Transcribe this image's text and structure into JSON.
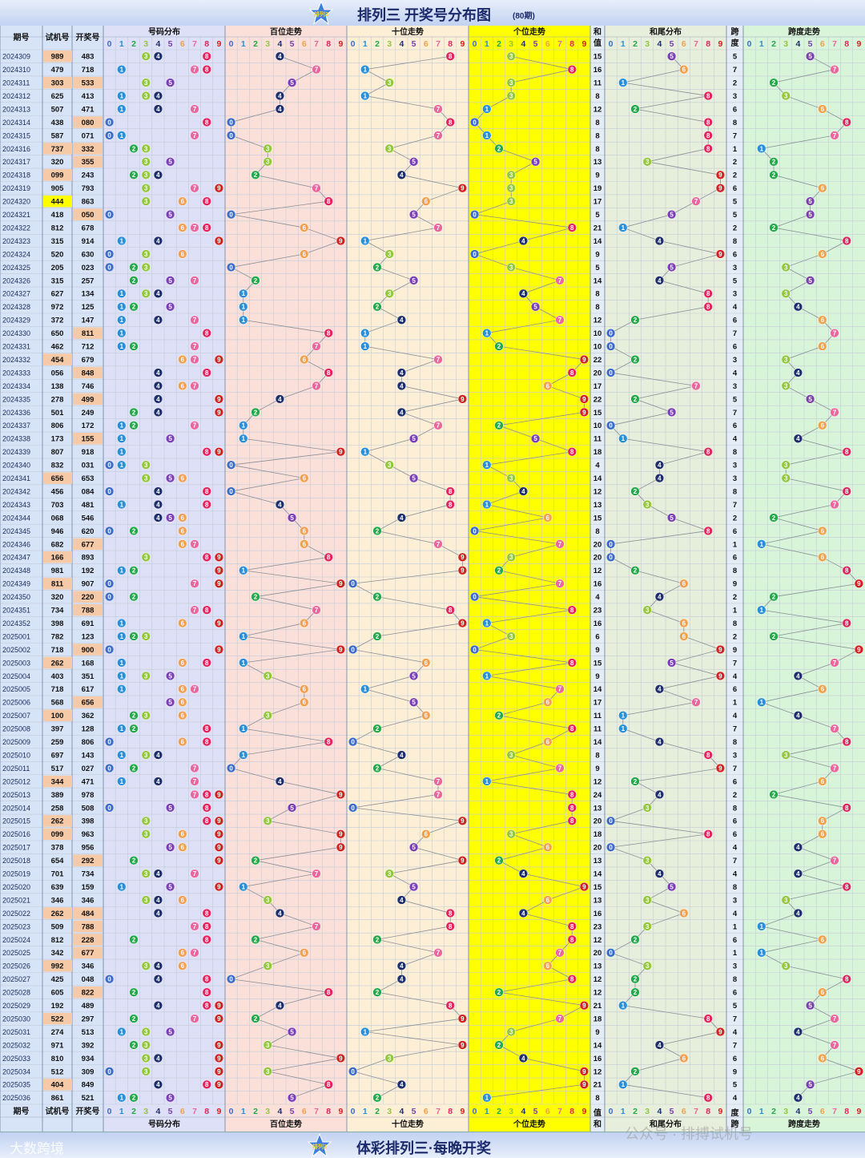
{
  "title": "排列三 开奖号分布图",
  "period_count": "(80期)",
  "logo_text": "排列3",
  "footer_title": "体彩排列三·每晚开奖",
  "watermark_left": "大数跨境",
  "watermark_right": "公众号 · 排搏试机号",
  "colors": {
    "d0": "#3c6cc8",
    "d1": "#2a8fd9",
    "d2": "#23a84a",
    "d3": "#92c73e",
    "d4": "#1e2f6e",
    "d5": "#7b3fb2",
    "d6": "#f2a04a",
    "d7": "#e9679e",
    "d8": "#e1245e",
    "d9": "#d32020"
  },
  "chart_data": {
    "type": "table",
    "columns": [
      "期号",
      "试机号",
      "开奖号",
      "号码分布",
      "百位走势",
      "十位走势",
      "个位走势",
      "和值",
      "和尾分布",
      "跨度",
      "跨度走势"
    ],
    "column_labels": {
      "issue": "期号",
      "trial": "试机号",
      "draw": "开奖号",
      "dist": "号码分布",
      "hundreds": "百位走势",
      "tens": "十位走势",
      "units": "个位走势",
      "sum": "和值",
      "sum_tail": "和尾分布",
      "span": "跨度",
      "span_trend": "跨度走势"
    },
    "digit_labels": [
      "0",
      "1",
      "2",
      "3",
      "4",
      "5",
      "6",
      "7",
      "8",
      "9"
    ],
    "rows": [
      {
        "issue": "2024309",
        "trial": "989",
        "draw": "483",
        "sum": "15",
        "span": "5"
      },
      {
        "issue": "2024310",
        "trial": "479",
        "draw": "718",
        "sum": "16",
        "span": "7"
      },
      {
        "issue": "2024311",
        "trial": "303",
        "draw": "533",
        "sum": "11",
        "span": "2"
      },
      {
        "issue": "2024312",
        "trial": "625",
        "draw": "413",
        "sum": "8",
        "span": "3"
      },
      {
        "issue": "2024313",
        "trial": "507",
        "draw": "471",
        "sum": "12",
        "span": "6"
      },
      {
        "issue": "2024314",
        "trial": "438",
        "draw": "080",
        "sum": "8",
        "span": "8"
      },
      {
        "issue": "2024315",
        "trial": "587",
        "draw": "071",
        "sum": "8",
        "span": "7"
      },
      {
        "issue": "2024316",
        "trial": "737",
        "draw": "332",
        "sum": "8",
        "span": "1"
      },
      {
        "issue": "2024317",
        "trial": "320",
        "draw": "355",
        "sum": "13",
        "span": "2"
      },
      {
        "issue": "2024318",
        "trial": "099",
        "draw": "243",
        "sum": "9",
        "span": "2"
      },
      {
        "issue": "2024319",
        "trial": "905",
        "draw": "793",
        "sum": "19",
        "span": "6"
      },
      {
        "issue": "2024320",
        "trial": "444",
        "draw": "863",
        "sum": "17",
        "span": "5"
      },
      {
        "issue": "2024321",
        "trial": "418",
        "draw": "050",
        "sum": "5",
        "span": "5"
      },
      {
        "issue": "2024322",
        "trial": "812",
        "draw": "678",
        "sum": "21",
        "span": "2"
      },
      {
        "issue": "2024323",
        "trial": "315",
        "draw": "914",
        "sum": "14",
        "span": "8"
      },
      {
        "issue": "2024324",
        "trial": "520",
        "draw": "630",
        "sum": "9",
        "span": "6"
      },
      {
        "issue": "2024325",
        "trial": "205",
        "draw": "023",
        "sum": "5",
        "span": "3"
      },
      {
        "issue": "2024326",
        "trial": "315",
        "draw": "257",
        "sum": "14",
        "span": "5"
      },
      {
        "issue": "2024327",
        "trial": "627",
        "draw": "134",
        "sum": "8",
        "span": "3"
      },
      {
        "issue": "2024328",
        "trial": "972",
        "draw": "125",
        "sum": "8",
        "span": "4"
      },
      {
        "issue": "2024329",
        "trial": "372",
        "draw": "147",
        "sum": "12",
        "span": "6"
      },
      {
        "issue": "2024330",
        "trial": "650",
        "draw": "811",
        "sum": "10",
        "span": "7"
      },
      {
        "issue": "2024331",
        "trial": "462",
        "draw": "712",
        "sum": "10",
        "span": "6"
      },
      {
        "issue": "2024332",
        "trial": "454",
        "draw": "679",
        "sum": "22",
        "span": "3"
      },
      {
        "issue": "2024333",
        "trial": "056",
        "draw": "848",
        "sum": "20",
        "span": "4"
      },
      {
        "issue": "2024334",
        "trial": "138",
        "draw": "746",
        "sum": "17",
        "span": "3"
      },
      {
        "issue": "2024335",
        "trial": "278",
        "draw": "499",
        "sum": "22",
        "span": "5"
      },
      {
        "issue": "2024336",
        "trial": "501",
        "draw": "249",
        "sum": "15",
        "span": "7"
      },
      {
        "issue": "2024337",
        "trial": "806",
        "draw": "172",
        "sum": "10",
        "span": "6"
      },
      {
        "issue": "2024338",
        "trial": "173",
        "draw": "155",
        "sum": "11",
        "span": "4"
      },
      {
        "issue": "2024339",
        "trial": "807",
        "draw": "918",
        "sum": "18",
        "span": "8"
      },
      {
        "issue": "2024340",
        "trial": "832",
        "draw": "031",
        "sum": "4",
        "span": "3"
      },
      {
        "issue": "2024341",
        "trial": "656",
        "draw": "653",
        "sum": "14",
        "span": "3"
      },
      {
        "issue": "2024342",
        "trial": "456",
        "draw": "084",
        "sum": "12",
        "span": "8"
      },
      {
        "issue": "2024343",
        "trial": "703",
        "draw": "481",
        "sum": "13",
        "span": "7"
      },
      {
        "issue": "2024344",
        "trial": "068",
        "draw": "546",
        "sum": "15",
        "span": "2"
      },
      {
        "issue": "2024345",
        "trial": "946",
        "draw": "620",
        "sum": "8",
        "span": "6"
      },
      {
        "issue": "2024346",
        "trial": "682",
        "draw": "677",
        "sum": "20",
        "span": "1"
      },
      {
        "issue": "2024347",
        "trial": "166",
        "draw": "893",
        "sum": "20",
        "span": "6"
      },
      {
        "issue": "2024348",
        "trial": "981",
        "draw": "192",
        "sum": "12",
        "span": "8"
      },
      {
        "issue": "2024349",
        "trial": "811",
        "draw": "907",
        "sum": "16",
        "span": "9"
      },
      {
        "issue": "2024350",
        "trial": "320",
        "draw": "220",
        "sum": "4",
        "span": "2"
      },
      {
        "issue": "2024351",
        "trial": "734",
        "draw": "788",
        "sum": "23",
        "span": "1"
      },
      {
        "issue": "2024352",
        "trial": "398",
        "draw": "691",
        "sum": "16",
        "span": "8"
      },
      {
        "issue": "2025001",
        "trial": "782",
        "draw": "123",
        "sum": "6",
        "span": "2"
      },
      {
        "issue": "2025002",
        "trial": "718",
        "draw": "900",
        "sum": "9",
        "span": "9"
      },
      {
        "issue": "2025003",
        "trial": "262",
        "draw": "168",
        "sum": "15",
        "span": "7"
      },
      {
        "issue": "2025004",
        "trial": "403",
        "draw": "351",
        "sum": "9",
        "span": "4"
      },
      {
        "issue": "2025005",
        "trial": "718",
        "draw": "617",
        "sum": "14",
        "span": "6"
      },
      {
        "issue": "2025006",
        "trial": "568",
        "draw": "656",
        "sum": "17",
        "span": "1"
      },
      {
        "issue": "2025007",
        "trial": "100",
        "draw": "362",
        "sum": "11",
        "span": "4"
      },
      {
        "issue": "2025008",
        "trial": "397",
        "draw": "128",
        "sum": "11",
        "span": "7"
      },
      {
        "issue": "2025009",
        "trial": "259",
        "draw": "806",
        "sum": "14",
        "span": "8"
      },
      {
        "issue": "2025010",
        "trial": "697",
        "draw": "143",
        "sum": "8",
        "span": "3"
      },
      {
        "issue": "2025011",
        "trial": "517",
        "draw": "027",
        "sum": "9",
        "span": "7"
      },
      {
        "issue": "2025012",
        "trial": "344",
        "draw": "471",
        "sum": "12",
        "span": "6"
      },
      {
        "issue": "2025013",
        "trial": "389",
        "draw": "978",
        "sum": "24",
        "span": "2"
      },
      {
        "issue": "2025014",
        "trial": "258",
        "draw": "508",
        "sum": "13",
        "span": "8"
      },
      {
        "issue": "2025015",
        "trial": "262",
        "draw": "398",
        "sum": "20",
        "span": "6"
      },
      {
        "issue": "2025016",
        "trial": "099",
        "draw": "963",
        "sum": "18",
        "span": "6"
      },
      {
        "issue": "2025017",
        "trial": "378",
        "draw": "956",
        "sum": "20",
        "span": "4"
      },
      {
        "issue": "2025018",
        "trial": "654",
        "draw": "292",
        "sum": "13",
        "span": "7"
      },
      {
        "issue": "2025019",
        "trial": "701",
        "draw": "734",
        "sum": "14",
        "span": "4"
      },
      {
        "issue": "2025020",
        "trial": "639",
        "draw": "159",
        "sum": "15",
        "span": "8"
      },
      {
        "issue": "2025021",
        "trial": "346",
        "draw": "346",
        "sum": "13",
        "span": "3"
      },
      {
        "issue": "2025022",
        "trial": "262",
        "draw": "484",
        "sum": "16",
        "span": "4"
      },
      {
        "issue": "2025023",
        "trial": "509",
        "draw": "788",
        "sum": "23",
        "span": "1"
      },
      {
        "issue": "2025024",
        "trial": "812",
        "draw": "228",
        "sum": "12",
        "span": "6"
      },
      {
        "issue": "2025025",
        "trial": "342",
        "draw": "677",
        "sum": "20",
        "span": "1"
      },
      {
        "issue": "2025026",
        "trial": "992",
        "draw": "346",
        "sum": "13",
        "span": "3"
      },
      {
        "issue": "2025027",
        "trial": "425",
        "draw": "048",
        "sum": "12",
        "span": "8"
      },
      {
        "issue": "2025028",
        "trial": "605",
        "draw": "822",
        "sum": "12",
        "span": "6"
      },
      {
        "issue": "2025029",
        "trial": "192",
        "draw": "489",
        "sum": "21",
        "span": "5"
      },
      {
        "issue": "2025030",
        "trial": "522",
        "draw": "297",
        "sum": "18",
        "span": "7"
      },
      {
        "issue": "2025031",
        "trial": "274",
        "draw": "513",
        "sum": "9",
        "span": "4"
      },
      {
        "issue": "2025032",
        "trial": "971",
        "draw": "392",
        "sum": "14",
        "span": "7"
      },
      {
        "issue": "2025033",
        "trial": "810",
        "draw": "934",
        "sum": "16",
        "span": "6"
      },
      {
        "issue": "2025034",
        "trial": "512",
        "draw": "309",
        "sum": "12",
        "span": "9"
      },
      {
        "issue": "2025035",
        "trial": "404",
        "draw": "849",
        "sum": "21",
        "span": "5"
      },
      {
        "issue": "2025036",
        "trial": "861",
        "draw": "521",
        "sum": "8",
        "span": "4"
      }
    ]
  }
}
